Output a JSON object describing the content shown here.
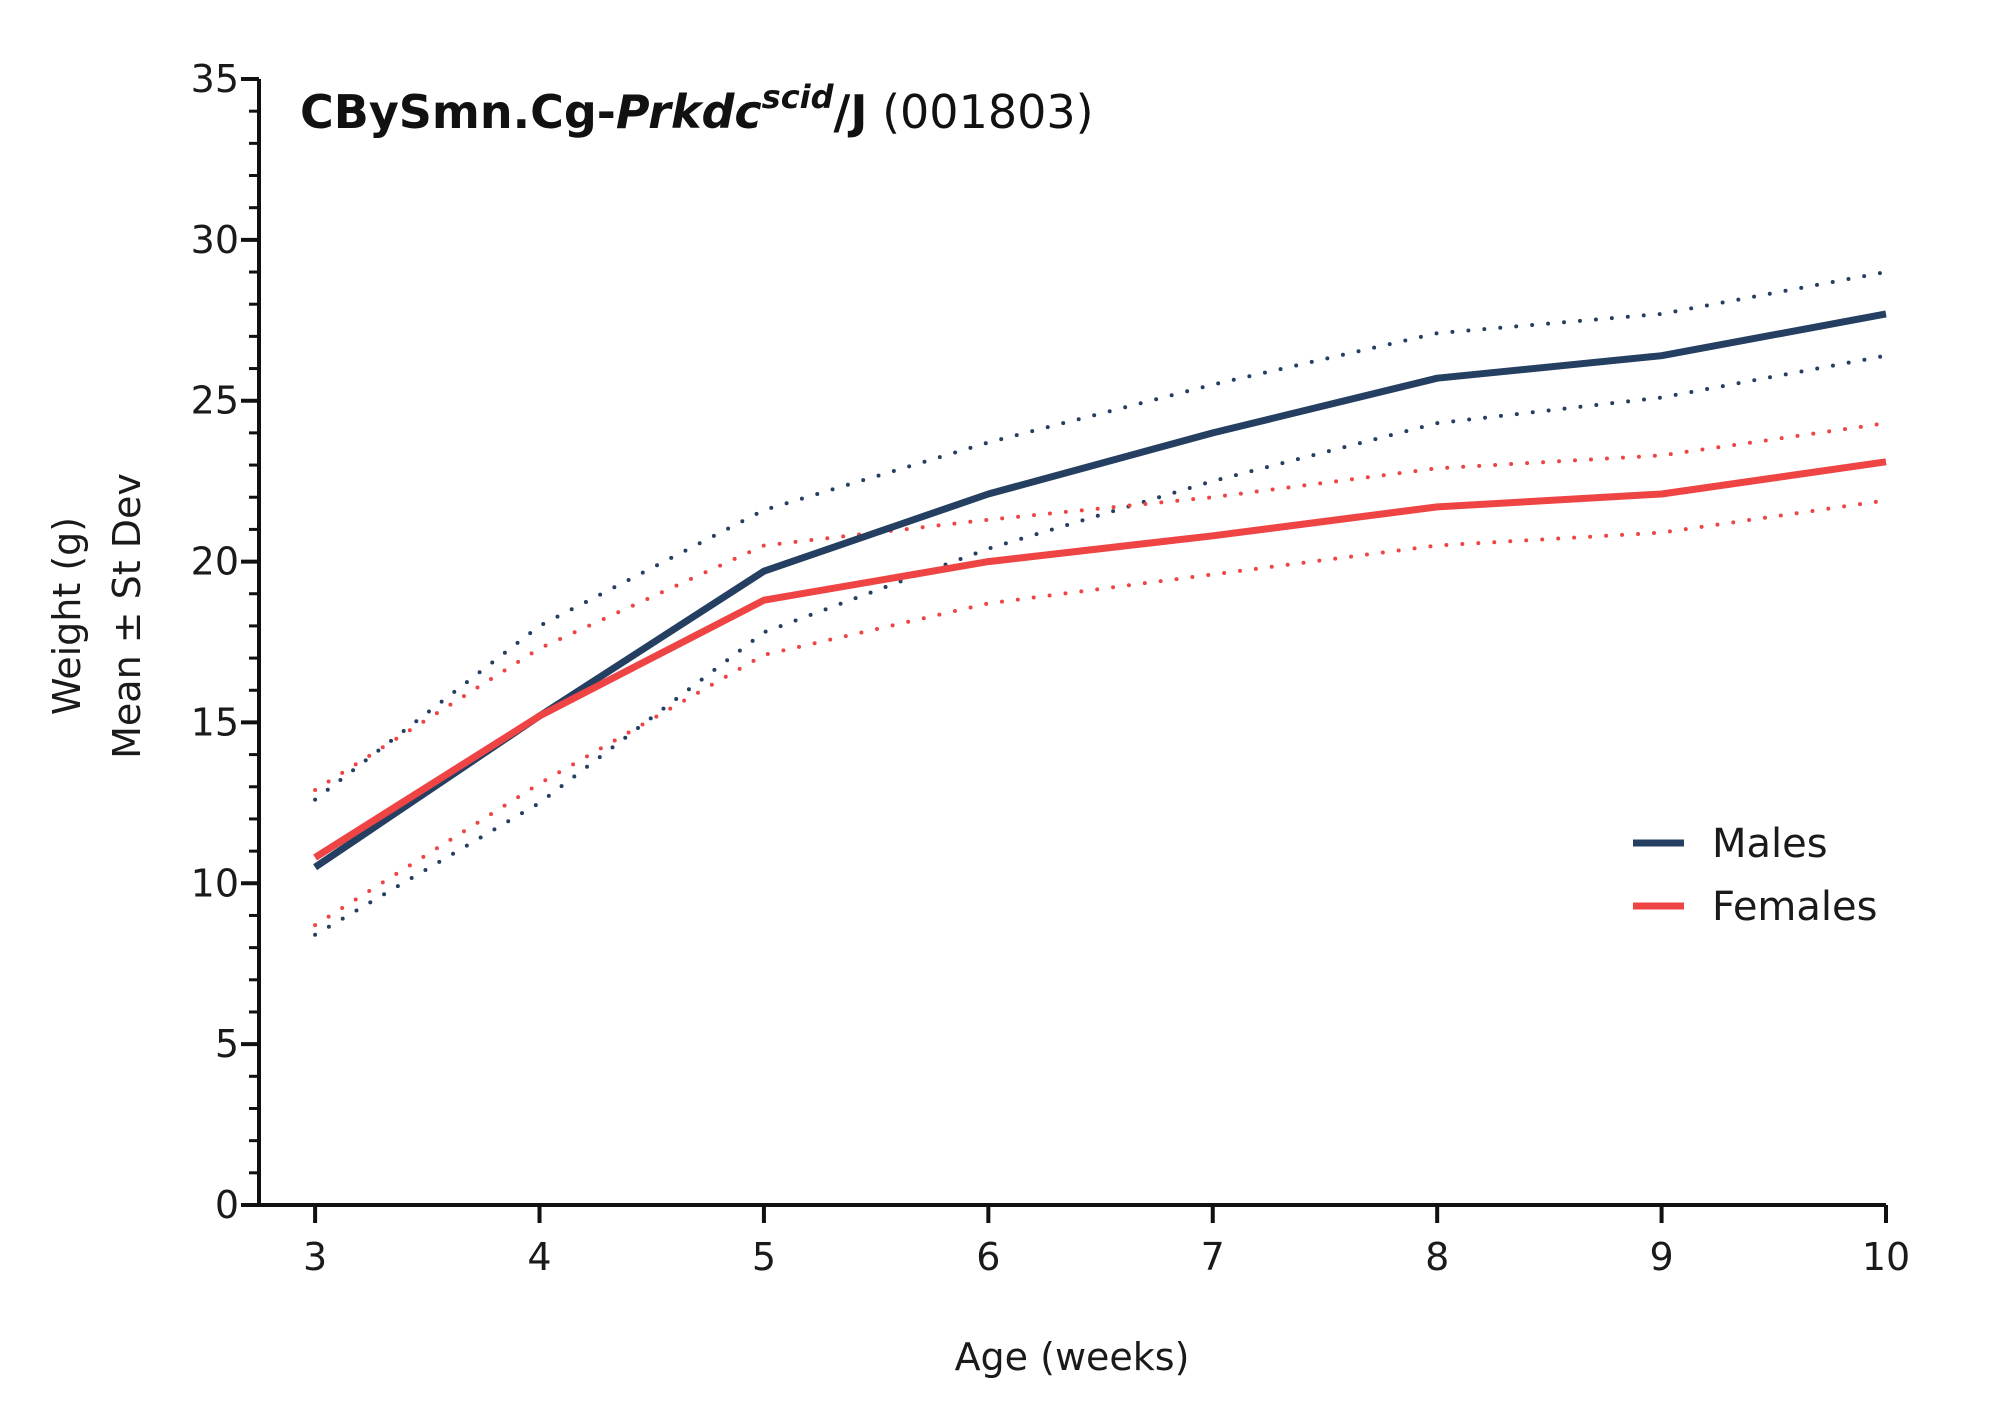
{
  "chart_data": {
    "type": "line",
    "title": {
      "prefix": "CBySmn.Cg-",
      "gene": "Prkdc",
      "superscript": "scid",
      "suffix": "/J",
      "stock": " (001803)"
    },
    "xlabel": "Age (weeks)",
    "ylabel_line1": "Weight (g)",
    "ylabel_line2": "Mean ± St Dev",
    "x": [
      3,
      4,
      5,
      6,
      7,
      8,
      9,
      10
    ],
    "xlim": [
      2.75,
      10
    ],
    "ylim": [
      0,
      35
    ],
    "x_ticks": [
      "3",
      "4",
      "5",
      "6",
      "7",
      "8",
      "9",
      "10"
    ],
    "y_ticks": [
      "0",
      "5",
      "10",
      "15",
      "20",
      "25",
      "30",
      "35"
    ],
    "grid": false,
    "legend_position": "right",
    "series": [
      {
        "name": "Males",
        "color": "#243f61",
        "mean": [
          10.5,
          15.2,
          19.7,
          22.1,
          24.0,
          25.7,
          26.4,
          27.7
        ],
        "upper": [
          12.6,
          18.0,
          21.6,
          23.7,
          25.5,
          27.1,
          27.7,
          29.0
        ],
        "lower": [
          8.4,
          12.5,
          17.8,
          20.4,
          22.5,
          24.3,
          25.1,
          26.4
        ]
      },
      {
        "name": "Females",
        "color": "#ee4444",
        "mean": [
          10.8,
          15.2,
          18.8,
          20.0,
          20.8,
          21.7,
          22.1,
          23.1
        ],
        "upper": [
          12.9,
          17.3,
          20.5,
          21.3,
          22.0,
          22.9,
          23.3,
          24.3
        ],
        "lower": [
          8.7,
          13.1,
          17.1,
          18.7,
          19.6,
          20.5,
          20.9,
          21.9
        ]
      }
    ]
  }
}
